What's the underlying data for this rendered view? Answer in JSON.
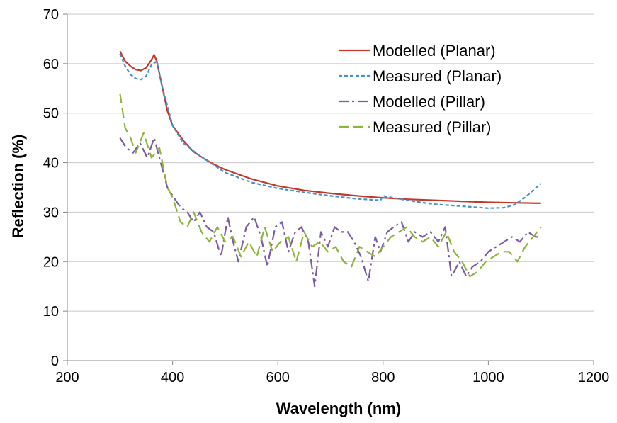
{
  "chart_data": {
    "type": "line",
    "title": "",
    "xlabel": "Wavelength (nm)",
    "ylabel": "Reflection (%)",
    "xlim": [
      200,
      1200
    ],
    "ylim": [
      0,
      70
    ],
    "xticks": [
      200,
      400,
      600,
      800,
      1000,
      1200
    ],
    "yticks": [
      0,
      10,
      20,
      30,
      40,
      50,
      60,
      70
    ],
    "grid": "horizontal",
    "legend_position": "top-right",
    "series": [
      {
        "name": "Modelled (Planar)",
        "color": "#c0392b",
        "style": "solid",
        "x": [
          300,
          310,
          320,
          330,
          340,
          350,
          360,
          365,
          370,
          380,
          390,
          400,
          420,
          440,
          460,
          480,
          500,
          550,
          600,
          650,
          700,
          750,
          800,
          850,
          900,
          950,
          1000,
          1050,
          1100
        ],
        "y": [
          62.5,
          60.5,
          59.5,
          58.8,
          58.6,
          59.2,
          60.8,
          61.8,
          60.5,
          55.5,
          50.5,
          47.5,
          44.5,
          42.2,
          40.8,
          39.6,
          38.6,
          36.7,
          35.3,
          34.4,
          33.8,
          33.3,
          32.9,
          32.6,
          32.4,
          32.2,
          32.0,
          31.9,
          31.8
        ]
      },
      {
        "name": "Measured (Planar)",
        "color": "#4a90c8",
        "style": "dashed",
        "x": [
          300,
          310,
          320,
          330,
          340,
          350,
          360,
          370,
          380,
          400,
          420,
          450,
          500,
          550,
          600,
          650,
          700,
          750,
          795,
          800,
          830,
          870,
          900,
          950,
          1000,
          1030,
          1050,
          1070,
          1100
        ],
        "y": [
          62.0,
          59.5,
          57.8,
          57.0,
          56.8,
          57.5,
          59.8,
          60.5,
          55.5,
          47.5,
          44.0,
          41.5,
          38.0,
          36.0,
          34.8,
          34.0,
          33.3,
          32.7,
          32.4,
          33.3,
          32.7,
          32.0,
          31.6,
          31.2,
          30.8,
          30.9,
          31.5,
          33.0,
          35.8
        ]
      },
      {
        "name": "Modelled (Pillar)",
        "color": "#7b5aa6",
        "style": "dashdot",
        "x": [
          300,
          312,
          325,
          338,
          352,
          365,
          375,
          390,
          402,
          415,
          428,
          440,
          452,
          465,
          478,
          492,
          505,
          515,
          525,
          540,
          555,
          568,
          580,
          595,
          608,
          620,
          633,
          645,
          658,
          670,
          682,
          695,
          708,
          720,
          733,
          745,
          758,
          772,
          785,
          795,
          808,
          820,
          835,
          848,
          860,
          875,
          890,
          905,
          918,
          930,
          945,
          958,
          970,
          985,
          1000,
          1015,
          1030,
          1045,
          1060,
          1075,
          1090,
          1100
        ],
        "y": [
          45,
          43,
          42,
          44,
          41,
          45,
          41,
          35,
          33,
          31,
          30,
          28,
          30,
          27,
          26,
          21,
          29,
          24,
          20,
          27,
          29,
          25,
          19,
          27,
          28,
          22,
          26,
          27,
          24,
          15,
          26,
          23,
          27,
          26,
          26,
          24,
          21,
          16,
          25,
          22,
          26,
          27,
          28,
          24,
          26,
          25,
          26,
          24,
          27,
          17,
          20,
          17,
          19,
          20,
          22,
          23,
          24,
          25,
          24,
          26,
          25,
          25
        ]
      },
      {
        "name": "Measured (Pillar)",
        "color": "#8db53c",
        "style": "longdash",
        "x": [
          300,
          310,
          320,
          330,
          345,
          360,
          375,
          390,
          400,
          415,
          428,
          440,
          455,
          470,
          485,
          500,
          515,
          530,
          545,
          560,
          575,
          590,
          605,
          620,
          635,
          650,
          665,
          680,
          695,
          710,
          725,
          740,
          755,
          770,
          785,
          800,
          815,
          830,
          845,
          860,
          875,
          890,
          905,
          920,
          935,
          950,
          965,
          980,
          995,
          1010,
          1025,
          1040,
          1055,
          1070,
          1085,
          1100
        ],
        "y": [
          54,
          47,
          45,
          42,
          46,
          41,
          43,
          35,
          33,
          28,
          27,
          30,
          26,
          24,
          27,
          24,
          25,
          21,
          24,
          21,
          27,
          22,
          24,
          25,
          20,
          26,
          23,
          24,
          22,
          23,
          20,
          19,
          23,
          22,
          21,
          23,
          25,
          26,
          27,
          25,
          24,
          25,
          23,
          26,
          22,
          20,
          17,
          18,
          20,
          21,
          22,
          22,
          20,
          23,
          25,
          27
        ]
      }
    ]
  }
}
